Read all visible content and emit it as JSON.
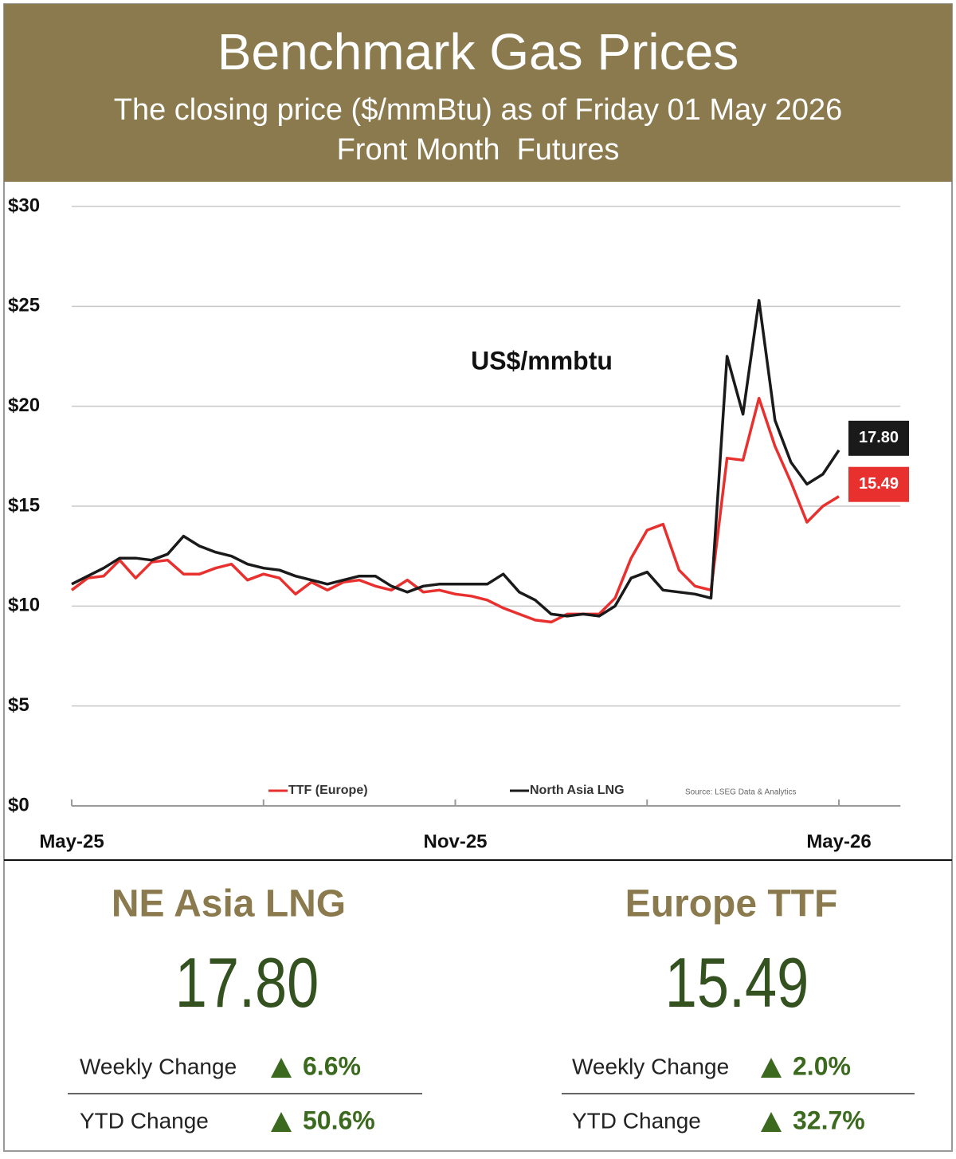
{
  "header": {
    "title": "Benchmark Gas Prices",
    "subtitle": "The closing price ($/mmBtu) as of Friday 01 May 2026",
    "subtitle2": "Front Month  Futures"
  },
  "chart_data": {
    "type": "line",
    "annotation": "US$/mmbtu",
    "source": "Source: LSEG Data & Analytics",
    "x": [
      0,
      0.25,
      0.5,
      0.75,
      1,
      1.25,
      1.5,
      1.75,
      2,
      2.25,
      2.5,
      2.75,
      3,
      3.25,
      3.5,
      3.75,
      4,
      4.25,
      4.5,
      4.75,
      5,
      5.25,
      5.5,
      5.75,
      6,
      6.25,
      6.5,
      6.75,
      7,
      7.25,
      7.5,
      7.75,
      8,
      8.25,
      8.5,
      8.75,
      9,
      9.25,
      9.5,
      9.75,
      10,
      10.25,
      10.5,
      10.75,
      11,
      11.25,
      11.5,
      11.75,
      12
    ],
    "xlim": [
      0,
      13
    ],
    "xticks": [
      {
        "value": 0,
        "label": "May-25"
      },
      {
        "value": 6,
        "label": "Nov-25"
      },
      {
        "value": 12,
        "label": "May-26"
      }
    ],
    "xminorticks": [
      3,
      9
    ],
    "ylim": [
      0,
      30
    ],
    "yticks": [
      {
        "value": 0,
        "label": "$0"
      },
      {
        "value": 5,
        "label": "$5"
      },
      {
        "value": 10,
        "label": "$10"
      },
      {
        "value": 15,
        "label": "$15"
      },
      {
        "value": 20,
        "label": "$20"
      },
      {
        "value": 25,
        "label": "$25"
      },
      {
        "value": 30,
        "label": "$30"
      }
    ],
    "grid": true,
    "series": [
      {
        "name": "TTF (Europe)",
        "color": "#e8312f",
        "last_label": "15.49",
        "values": [
          10.8,
          11.4,
          11.5,
          12.3,
          11.4,
          12.2,
          12.3,
          11.6,
          11.6,
          11.9,
          12.1,
          11.3,
          11.6,
          11.4,
          10.6,
          11.2,
          10.8,
          11.2,
          11.3,
          11.0,
          10.8,
          11.3,
          10.7,
          10.8,
          10.6,
          10.5,
          10.3,
          9.9,
          9.6,
          9.3,
          9.2,
          9.6,
          9.6,
          9.6,
          10.4,
          12.4,
          13.8,
          14.1,
          11.8,
          11.0,
          10.8,
          17.4,
          17.3,
          20.4,
          18.0,
          16.2,
          14.2,
          15.0,
          15.49
        ]
      },
      {
        "name": "North Asia LNG",
        "color": "#1a1a1a",
        "last_label": "17.80",
        "values": [
          11.1,
          11.5,
          11.9,
          12.4,
          12.4,
          12.3,
          12.6,
          13.5,
          13.0,
          12.7,
          12.5,
          12.1,
          11.9,
          11.8,
          11.5,
          11.3,
          11.1,
          11.3,
          11.5,
          11.5,
          11.0,
          10.7,
          11.0,
          11.1,
          11.1,
          11.1,
          11.1,
          11.6,
          10.7,
          10.3,
          9.6,
          9.5,
          9.6,
          9.5,
          10.0,
          11.4,
          11.7,
          10.8,
          10.7,
          10.6,
          10.4,
          22.5,
          19.6,
          25.3,
          19.3,
          17.2,
          16.1,
          16.6,
          17.8
        ]
      }
    ]
  },
  "panels": [
    {
      "title": "NE Asia LNG",
      "price": "17.80",
      "weekly_label": "Weekly Change",
      "weekly_change": "6.6%",
      "ytd_label": "YTD Change",
      "ytd_change": "50.6%"
    },
    {
      "title": "Europe TTF",
      "price": "15.49",
      "weekly_label": "Weekly Change",
      "weekly_change": "2.0%",
      "ytd_label": "YTD Change",
      "ytd_change": "32.7%"
    }
  ]
}
